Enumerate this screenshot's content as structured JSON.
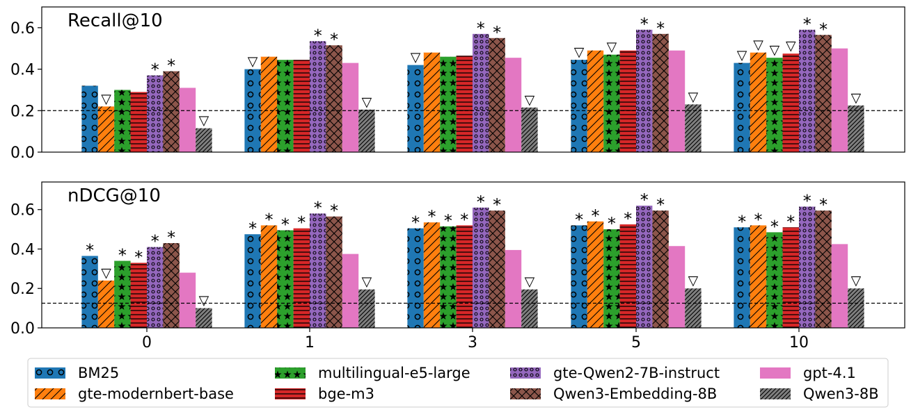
{
  "chart_data": {
    "type": "bar",
    "categories": [
      "0",
      "1",
      "3",
      "5",
      "10"
    ],
    "legend": {
      "placement": "bottom",
      "entries": [
        "BM25",
        "gte-modernbert-base",
        "multilingual-e5-large",
        "bge-m3",
        "gte-Qwen2-7B-instruct",
        "Qwen3-Embedding-8B",
        "gpt-4.1",
        "Qwen3-8B"
      ]
    },
    "series_styles": [
      {
        "name": "BM25",
        "color": "#1f77b4",
        "hatch": "circles"
      },
      {
        "name": "gte-modernbert-base",
        "color": "#ff7f0e",
        "hatch": "diagonal"
      },
      {
        "name": "multilingual-e5-large",
        "color": "#2ca02c",
        "hatch": "stars"
      },
      {
        "name": "bge-m3",
        "color": "#d62728",
        "hatch": "horizontal"
      },
      {
        "name": "gte-Qwen2-7B-instruct",
        "color": "#9467bd",
        "hatch": "dots"
      },
      {
        "name": "Qwen3-Embedding-8B",
        "color": "#8c564b",
        "hatch": "crosshatch"
      },
      {
        "name": "gpt-4.1",
        "color": "#e377c2",
        "hatch": "none"
      },
      {
        "name": "Qwen3-8B",
        "color": "#7f7f7f",
        "hatch": "dense-diagonal"
      }
    ],
    "panels": [
      {
        "title": "Recall@10",
        "ylim": [
          0,
          0.7
        ],
        "yticks": [
          "0.0",
          "0.2",
          "0.4",
          "0.6"
        ],
        "tick_values": [
          0,
          0.2,
          0.4,
          0.6
        ],
        "reference_line": 0.2,
        "series": [
          {
            "name": "BM25",
            "values": [
              0.32,
              0.4,
              0.42,
              0.445,
              0.43
            ],
            "markers": [
              "",
              "▽",
              "▽",
              "▽",
              "▽"
            ]
          },
          {
            "name": "gte-modernbert-base",
            "values": [
              0.22,
              0.46,
              0.48,
              0.49,
              0.48
            ],
            "markers": [
              "▽",
              "",
              "",
              "",
              "▽"
            ]
          },
          {
            "name": "multilingual-e5-large",
            "values": [
              0.3,
              0.445,
              0.46,
              0.47,
              0.455
            ],
            "markers": [
              "",
              "",
              "",
              "▽",
              "▽"
            ]
          },
          {
            "name": "bge-m3",
            "values": [
              0.29,
              0.445,
              0.465,
              0.49,
              0.475
            ],
            "markers": [
              "",
              "",
              "",
              "",
              "▽"
            ]
          },
          {
            "name": "gte-Qwen2-7B-instruct",
            "values": [
              0.37,
              0.535,
              0.57,
              0.59,
              0.59
            ],
            "markers": [
              "*",
              "*",
              "*",
              "*",
              "*"
            ]
          },
          {
            "name": "Qwen3-Embedding-8B",
            "values": [
              0.39,
              0.515,
              0.55,
              0.57,
              0.565
            ],
            "markers": [
              "*",
              "*",
              "*",
              "*",
              "*"
            ]
          },
          {
            "name": "gpt-4.1",
            "values": [
              0.31,
              0.43,
              0.455,
              0.49,
              0.5
            ],
            "markers": [
              "",
              "",
              "",
              "",
              ""
            ]
          },
          {
            "name": "Qwen3-8B",
            "values": [
              0.115,
              0.205,
              0.215,
              0.23,
              0.225
            ],
            "markers": [
              "▽",
              "▽",
              "▽",
              "▽",
              "▽"
            ]
          }
        ]
      },
      {
        "title": "nDCG@10",
        "ylim": [
          0,
          0.74
        ],
        "yticks": [
          "0.0",
          "0.2",
          "0.4",
          "0.6"
        ],
        "tick_values": [
          0,
          0.2,
          0.4,
          0.6
        ],
        "reference_line": 0.125,
        "series": [
          {
            "name": "BM25",
            "values": [
              0.365,
              0.475,
              0.505,
              0.52,
              0.51
            ],
            "markers": [
              "*",
              "*",
              "*",
              "*",
              "*"
            ]
          },
          {
            "name": "gte-modernbert-base",
            "values": [
              0.24,
              0.52,
              0.535,
              0.54,
              0.52
            ],
            "markers": [
              "▽",
              "*",
              "*",
              "*",
              "*"
            ]
          },
          {
            "name": "multilingual-e5-large",
            "values": [
              0.34,
              0.495,
              0.515,
              0.5,
              0.485
            ],
            "markers": [
              "*",
              "*",
              "*",
              "*",
              "*"
            ]
          },
          {
            "name": "bge-m3",
            "values": [
              0.33,
              0.505,
              0.52,
              0.525,
              0.51
            ],
            "markers": [
              "*",
              "*",
              "*",
              "*",
              "*"
            ]
          },
          {
            "name": "gte-Qwen2-7B-instruct",
            "values": [
              0.41,
              0.58,
              0.61,
              0.62,
              0.615
            ],
            "markers": [
              "*",
              "*",
              "*",
              "*",
              "*"
            ]
          },
          {
            "name": "Qwen3-Embedding-8B",
            "values": [
              0.43,
              0.565,
              0.595,
              0.595,
              0.595
            ],
            "markers": [
              "*",
              "*",
              "*",
              "*",
              "*"
            ]
          },
          {
            "name": "gpt-4.1",
            "values": [
              0.28,
              0.375,
              0.395,
              0.415,
              0.425
            ],
            "markers": [
              "",
              "",
              "",
              "",
              ""
            ]
          },
          {
            "name": "Qwen3-8B",
            "values": [
              0.1,
              0.195,
              0.195,
              0.2,
              0.2
            ],
            "markers": [
              "▽",
              "▽",
              "▽",
              "▽",
              "▽"
            ]
          }
        ]
      }
    ]
  }
}
